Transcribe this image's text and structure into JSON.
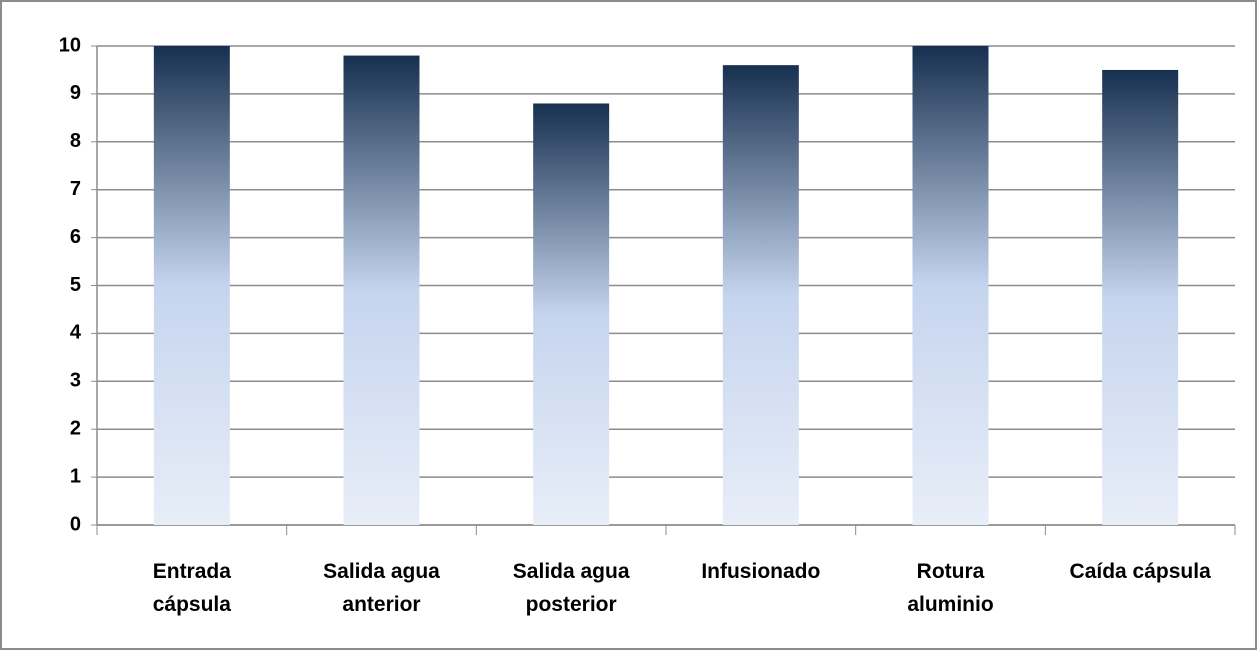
{
  "chart_data": {
    "type": "bar",
    "categories": [
      "Entrada\ncápsula",
      "Salida agua\nanterior",
      "Salida agua\nposterior",
      "Infusionado",
      "Rotura\naluminio",
      "Caída cápsula"
    ],
    "values": [
      10,
      9.8,
      8.8,
      9.6,
      10,
      9.5
    ],
    "color": [
      "#17304f",
      "#c5d4ee",
      "#e8eef8"
    ],
    "ylim": [
      0,
      10
    ],
    "yticks": [
      0,
      1,
      2,
      3,
      4,
      5,
      6,
      7,
      8,
      9,
      10
    ],
    "grid": true
  }
}
